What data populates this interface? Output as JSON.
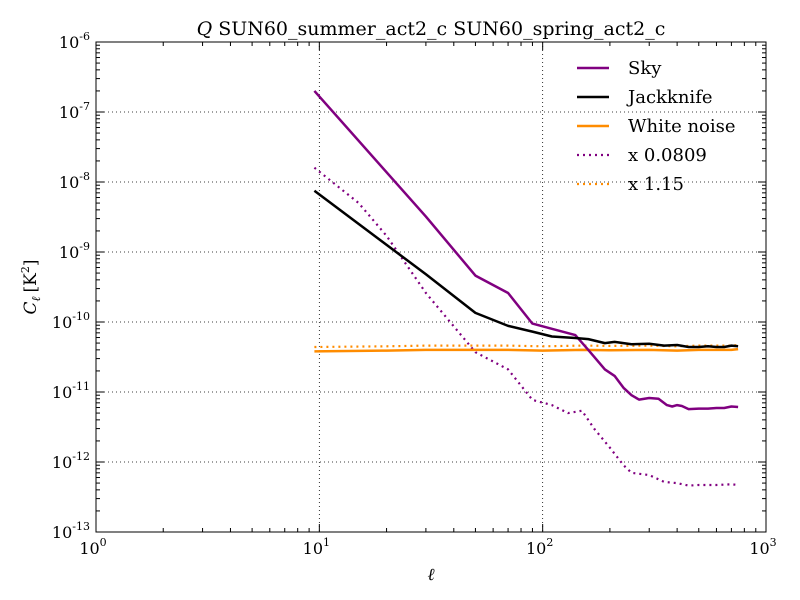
{
  "chart_data": {
    "type": "line",
    "title": "Q SUN60_summer_act2_c SUN60_spring_act2_c",
    "title_symbol": "Q",
    "title_rest": "SUN60_summer_act2_c SUN60_spring_act2_c",
    "xlabel": "ℓ",
    "ylabel_main": "C",
    "ylabel_sub": "ℓ",
    "ylabel_unit": "[K",
    "ylabel_unit_sup": "2",
    "ylabel_unit_end": "]",
    "xscale": "log",
    "yscale": "log",
    "xlim": [
      1,
      1000
    ],
    "ylim": [
      1e-13,
      1e-06
    ],
    "grid": true,
    "legend_placement": "top-right",
    "x_ticks": [
      {
        "value": 1,
        "base": "10",
        "exp": "0"
      },
      {
        "value": 10,
        "base": "10",
        "exp": "1"
      },
      {
        "value": 100,
        "base": "10",
        "exp": "2"
      },
      {
        "value": 1000,
        "base": "10",
        "exp": "3"
      }
    ],
    "y_ticks": [
      {
        "value": 1e-13,
        "base": "10",
        "exp": "-13"
      },
      {
        "value": 1e-12,
        "base": "10",
        "exp": "-12"
      },
      {
        "value": 1e-11,
        "base": "10",
        "exp": "-11"
      },
      {
        "value": 1e-10,
        "base": "10",
        "exp": "-10"
      },
      {
        "value": 1e-09,
        "base": "10",
        "exp": "-9"
      },
      {
        "value": 1e-08,
        "base": "10",
        "exp": "-8"
      },
      {
        "value": 1e-07,
        "base": "10",
        "exp": "-7"
      },
      {
        "value": 1e-06,
        "base": "10",
        "exp": "-6"
      }
    ],
    "series": [
      {
        "name": "Sky",
        "color": "#800080",
        "style": "solid",
        "x": [
          9.5,
          30,
          50,
          70,
          90,
          110,
          140,
          160,
          190,
          210,
          230,
          250,
          270,
          300,
          330,
          360,
          380,
          400,
          420,
          450,
          500,
          550,
          600,
          650,
          700,
          750
        ],
        "y": [
          2e-07,
          3.2e-09,
          4.6e-10,
          2.6e-10,
          9.5e-11,
          8e-11,
          6.5e-11,
          4e-11,
          2.1e-11,
          1.7e-11,
          1.15e-11,
          9e-12,
          7.8e-12,
          8.2e-12,
          8e-12,
          6.5e-12,
          6.2e-12,
          6.5e-12,
          6.3e-12,
          5.7e-12,
          5.8e-12,
          5.8e-12,
          5.9e-12,
          5.9e-12,
          6.2e-12,
          6.1e-12
        ]
      },
      {
        "name": "Jackknife",
        "color": "#000000",
        "style": "solid",
        "x": [
          9.5,
          30,
          50,
          70,
          90,
          110,
          140,
          160,
          190,
          210,
          250,
          300,
          350,
          400,
          450,
          500,
          550,
          600,
          650,
          700,
          750
        ],
        "y": [
          7.5e-09,
          4.8e-10,
          1.35e-10,
          8.8e-11,
          7.3e-11,
          6.2e-11,
          5.9e-11,
          5.7e-11,
          5e-11,
          5.2e-11,
          4.8e-11,
          4.9e-11,
          4.6e-11,
          4.7e-11,
          4.4e-11,
          4.4e-11,
          4.5e-11,
          4.4e-11,
          4.4e-11,
          4.6e-11,
          4.5e-11
        ]
      },
      {
        "name": "White noise",
        "color": "#ff8c00",
        "style": "solid",
        "x": [
          9.5,
          20,
          30,
          50,
          70,
          100,
          150,
          200,
          300,
          400,
          500,
          600,
          700,
          750
        ],
        "y": [
          3.8e-11,
          3.9e-11,
          4e-11,
          4e-11,
          4e-11,
          3.9e-11,
          4e-11,
          3.95e-11,
          4e-11,
          3.9e-11,
          4e-11,
          4e-11,
          4e-11,
          4.1e-11
        ]
      },
      {
        "name": "x 0.0809",
        "color": "#800080",
        "style": "dotted",
        "x": [
          9.5,
          15,
          20,
          30,
          50,
          70,
          90,
          110,
          130,
          150,
          170,
          200,
          230,
          250,
          300,
          350,
          400,
          450,
          500,
          600,
          700,
          750
        ],
        "y": [
          1.6e-08,
          5e-09,
          1.7e-09,
          2.6e-10,
          3.7e-11,
          2.1e-11,
          7.7e-12,
          6.5e-12,
          5e-12,
          5.4e-12,
          3e-12,
          1.6e-12,
          9e-13,
          7e-13,
          6.5e-13,
          5.2e-13,
          5e-13,
          4.6e-13,
          4.7e-13,
          4.7e-13,
          4.8e-13,
          4.7e-13
        ]
      },
      {
        "name": "x 1.15",
        "color": "#ff8c00",
        "style": "dotted",
        "x": [
          9.5,
          20,
          30,
          50,
          70,
          100,
          150,
          200,
          300,
          400,
          500,
          600,
          700,
          750
        ],
        "y": [
          4.4e-11,
          4.5e-11,
          4.6e-11,
          4.6e-11,
          4.6e-11,
          4.5e-11,
          4.6e-11,
          4.55e-11,
          4.6e-11,
          4.5e-11,
          4.6e-11,
          4.6e-11,
          4.6e-11,
          4.7e-11
        ]
      }
    ]
  }
}
